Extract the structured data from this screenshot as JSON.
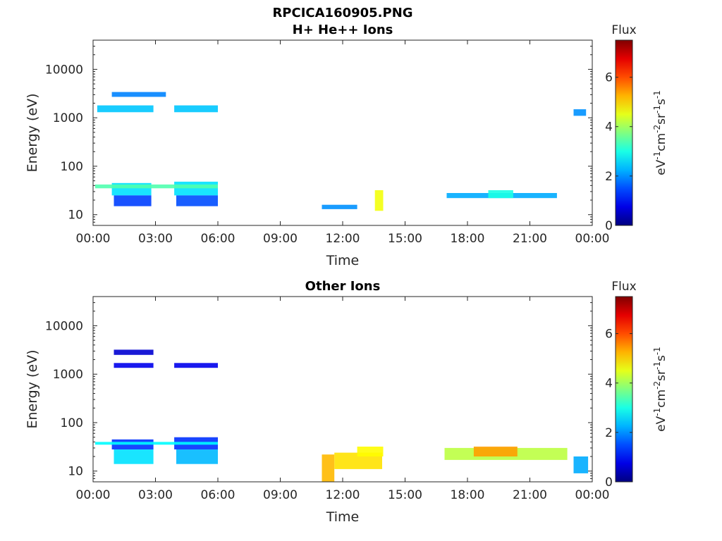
{
  "chart_data": [
    {
      "type": "heatmap",
      "title": "RPCICA160905.PNG",
      "subtitle": "H+ He++ Ions",
      "xlabel": "Time",
      "ylabel": "Energy (eV)",
      "x_ticks": [
        "00:00",
        "03:00",
        "06:00",
        "09:00",
        "12:00",
        "15:00",
        "18:00",
        "21:00",
        "00:00"
      ],
      "y_ticks": [
        "10",
        "100",
        "1000",
        "10000"
      ],
      "y_scale": "log",
      "xlim_hours": [
        0,
        24
      ],
      "ylim": [
        6,
        40000
      ],
      "colorbar": {
        "title": "Flux",
        "unit": "eV-1cm-2sr-1s-1",
        "ticks": [
          "0",
          "2",
          "4",
          "6"
        ],
        "range": [
          0,
          7.5
        ]
      },
      "regions": [
        {
          "t0": 0.9,
          "t1": 2.8,
          "e0": 25,
          "e1": 45,
          "v": 2.6
        },
        {
          "t0": 3.9,
          "t1": 6.0,
          "e0": 25,
          "e1": 48,
          "v": 2.6
        },
        {
          "t0": 0.1,
          "t1": 6.0,
          "e0": 35,
          "e1": 42,
          "v": 3.4
        },
        {
          "t0": 1.0,
          "t1": 2.8,
          "e0": 15,
          "e1": 25,
          "v": 1.4
        },
        {
          "t0": 4.0,
          "t1": 6.0,
          "e0": 15,
          "e1": 25,
          "v": 1.5
        },
        {
          "t0": 0.2,
          "t1": 2.9,
          "e0": 1300,
          "e1": 1800,
          "v": 2.4
        },
        {
          "t0": 3.9,
          "t1": 6.0,
          "e0": 1300,
          "e1": 1800,
          "v": 2.4
        },
        {
          "t0": 0.9,
          "t1": 3.5,
          "e0": 2700,
          "e1": 3400,
          "v": 1.9
        },
        {
          "t0": 13.55,
          "t1": 13.95,
          "e0": 12,
          "e1": 32,
          "v": 4.6
        },
        {
          "t0": 11.0,
          "t1": 12.7,
          "e0": 13,
          "e1": 16,
          "v": 2.0
        },
        {
          "t0": 17.0,
          "t1": 22.3,
          "e0": 22,
          "e1": 28,
          "v": 2.2
        },
        {
          "t0": 19.0,
          "t1": 20.2,
          "e0": 22,
          "e1": 32,
          "v": 3.0
        },
        {
          "t0": 23.1,
          "t1": 23.7,
          "e0": 1100,
          "e1": 1500,
          "v": 2.0
        }
      ]
    },
    {
      "type": "heatmap",
      "title": "Other Ions",
      "xlabel": "Time",
      "ylabel": "Energy (eV)",
      "x_ticks": [
        "00:00",
        "03:00",
        "06:00",
        "09:00",
        "12:00",
        "15:00",
        "18:00",
        "21:00",
        "00:00"
      ],
      "y_ticks": [
        "10",
        "100",
        "1000",
        "10000"
      ],
      "y_scale": "log",
      "xlim_hours": [
        0,
        24
      ],
      "ylim": [
        6,
        40000
      ],
      "colorbar": {
        "title": "Flux",
        "unit": "eV-1cm-2sr-1s-1",
        "ticks": [
          "0",
          "2",
          "4",
          "6"
        ],
        "range": [
          0,
          7.5
        ]
      },
      "regions": [
        {
          "t0": 0.9,
          "t1": 2.9,
          "e0": 28,
          "e1": 45,
          "v": 1.3
        },
        {
          "t0": 3.9,
          "t1": 6.0,
          "e0": 28,
          "e1": 50,
          "v": 1.3
        },
        {
          "t0": 0.1,
          "t1": 6.0,
          "e0": 35,
          "e1": 40,
          "v": 2.8
        },
        {
          "t0": 1.0,
          "t1": 2.9,
          "e0": 14,
          "e1": 28,
          "v": 2.6
        },
        {
          "t0": 4.0,
          "t1": 6.0,
          "e0": 14,
          "e1": 28,
          "v": 2.3
        },
        {
          "t0": 1.0,
          "t1": 2.9,
          "e0": 1350,
          "e1": 1700,
          "v": 0.8
        },
        {
          "t0": 3.9,
          "t1": 6.0,
          "e0": 1350,
          "e1": 1700,
          "v": 0.8
        },
        {
          "t0": 1.0,
          "t1": 2.9,
          "e0": 2500,
          "e1": 3200,
          "v": 0.6
        },
        {
          "t0": 11.0,
          "t1": 11.6,
          "e0": 6,
          "e1": 22,
          "v": 5.2
        },
        {
          "t0": 11.6,
          "t1": 13.9,
          "e0": 11,
          "e1": 24,
          "v": 4.9
        },
        {
          "t0": 12.7,
          "t1": 13.95,
          "e0": 20,
          "e1": 32,
          "v": 4.7
        },
        {
          "t0": 16.9,
          "t1": 22.8,
          "e0": 17,
          "e1": 30,
          "v": 4.2
        },
        {
          "t0": 18.3,
          "t1": 20.4,
          "e0": 20,
          "e1": 32,
          "v": 5.4
        },
        {
          "t0": 23.1,
          "t1": 23.8,
          "e0": 9,
          "e1": 20,
          "v": 2.2
        }
      ]
    }
  ]
}
